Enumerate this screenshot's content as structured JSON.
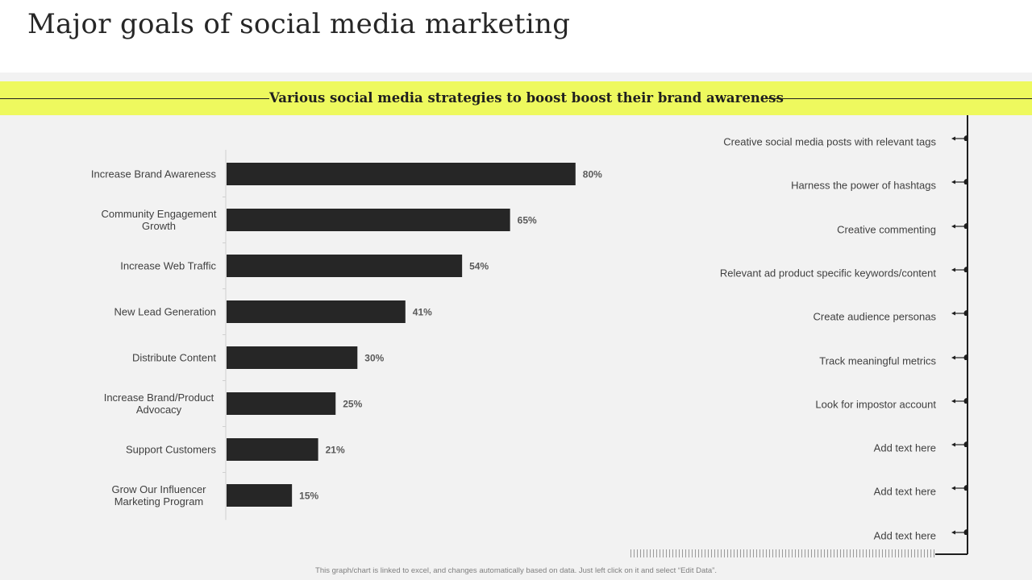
{
  "page": {
    "title": "Major goals of social media marketing",
    "banner_text": "Various social media strategies to boost boost their brand awareness",
    "footer_note": "This graph/chart is linked to excel, and changes automatically based on data. Just left click on it and select “Edit Data”."
  },
  "colors": {
    "bar": "#262626",
    "banner": "#eef95e",
    "background": "#f2f2f2"
  },
  "chart_data": {
    "type": "bar",
    "orientation": "horizontal",
    "categories": [
      "Increase Brand Awareness",
      "Community Engagement Growth",
      "Increase Web Traffic",
      "New Lead Generation",
      "Distribute Content",
      "Increase Brand/Product Advocacy",
      "Support Customers",
      "Grow Our Influencer Marketing Program"
    ],
    "values": [
      80,
      65,
      54,
      41,
      30,
      25,
      21,
      15
    ],
    "value_labels": [
      "80%",
      "65%",
      "54%",
      "41%",
      "30%",
      "25%",
      "21%",
      "15%"
    ],
    "unit": "%",
    "xlim": [
      0,
      100
    ],
    "grid": false,
    "legend": "none"
  },
  "strategies": [
    "Creative  social media posts with relevant  tags",
    "Harness the power of hashtags",
    "Creative  commenting",
    "Relevant  ad product  specific keywords/content",
    "Create audience  personas",
    "Track meaningful  metrics",
    "Look for impostor account",
    "Add text here",
    "Add text here",
    "Add text here"
  ]
}
